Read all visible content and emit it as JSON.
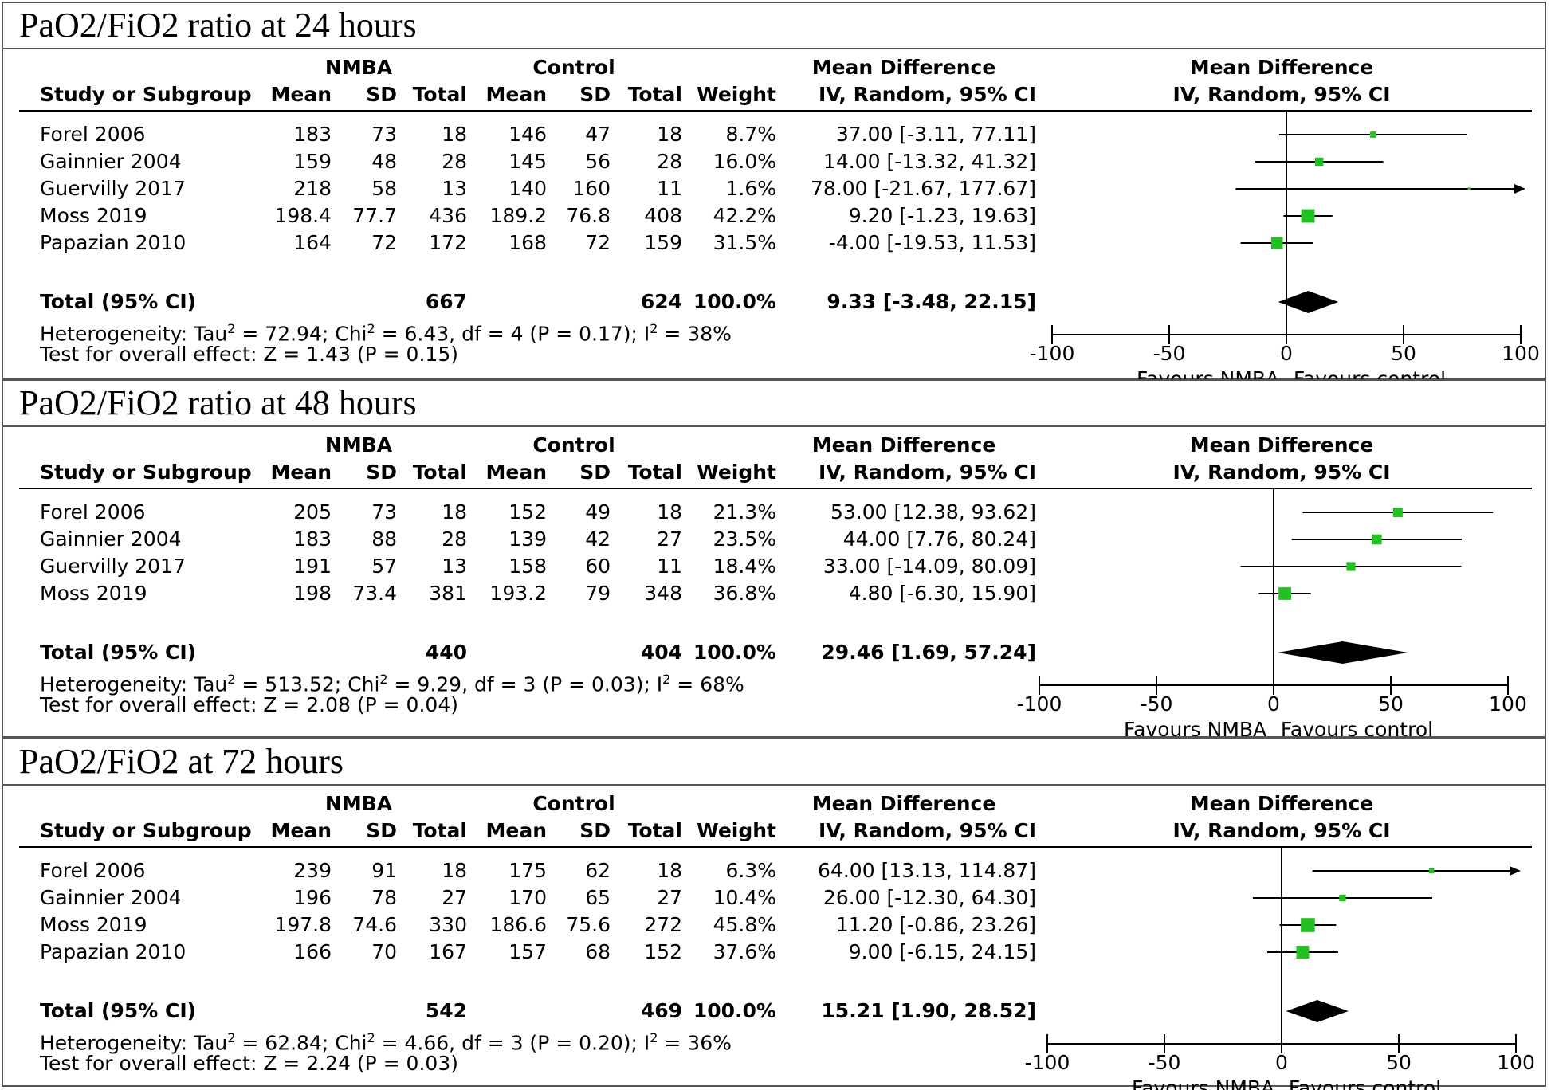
{
  "headers": {
    "group_a": "NMBA",
    "group_b": "Control",
    "study": "Study or Subgroup",
    "mean": "Mean",
    "sd": "SD",
    "total": "Total",
    "weight": "Weight",
    "md_title": "Mean Difference",
    "md_sub": "IV, Random, 95% CI"
  },
  "colors": {
    "marker": "#22c022",
    "diamond": "#000000",
    "line": "#000000",
    "border": "#555555"
  },
  "chart_data": [
    {
      "type": "forest",
      "title": "PaO2/FiO2 ratio at 24 hours",
      "xlim": [
        -100,
        100
      ],
      "xticks": [
        "-100",
        "-50",
        "0",
        "50",
        "100"
      ],
      "favours_left": "Favours NMBA",
      "favours_right": "Favours control",
      "rows": [
        {
          "study": "Forel 2006",
          "mean_a": "183",
          "sd_a": "73",
          "total_a": "18",
          "mean_b": "146",
          "sd_b": "47",
          "total_b": "18",
          "weight": "8.7%",
          "ci_text": "37.00 [-3.11, 77.11]",
          "md": 37.0,
          "lo": -3.11,
          "hi": 77.11,
          "w": 8.7
        },
        {
          "study": "Gainnier 2004",
          "mean_a": "159",
          "sd_a": "48",
          "total_a": "28",
          "mean_b": "145",
          "sd_b": "56",
          "total_b": "28",
          "weight": "16.0%",
          "ci_text": "14.00 [-13.32, 41.32]",
          "md": 14.0,
          "lo": -13.32,
          "hi": 41.32,
          "w": 16.0
        },
        {
          "study": "Guervilly 2017",
          "mean_a": "218",
          "sd_a": "58",
          "total_a": "13",
          "mean_b": "140",
          "sd_b": "160",
          "total_b": "11",
          "weight": "1.6%",
          "ci_text": "78.00 [-21.67, 177.67]",
          "md": 78.0,
          "lo": -21.67,
          "hi": 177.67,
          "w": 1.6
        },
        {
          "study": "Moss 2019",
          "mean_a": "198.4",
          "sd_a": "77.7",
          "total_a": "436",
          "mean_b": "189.2",
          "sd_b": "76.8",
          "total_b": "408",
          "weight": "42.2%",
          "ci_text": "9.20 [-1.23, 19.63]",
          "md": 9.2,
          "lo": -1.23,
          "hi": 19.63,
          "w": 42.2
        },
        {
          "study": "Papazian 2010",
          "mean_a": "164",
          "sd_a": "72",
          "total_a": "172",
          "mean_b": "168",
          "sd_b": "72",
          "total_b": "159",
          "weight": "31.5%",
          "ci_text": "-4.00 [-19.53, 11.53]",
          "md": -4.0,
          "lo": -19.53,
          "hi": 11.53,
          "w": 31.5
        }
      ],
      "total": {
        "label": "Total (95% CI)",
        "total_a": "667",
        "total_b": "624",
        "weight": "100.0%",
        "ci_text": "9.33 [-3.48, 22.15]",
        "md": 9.33,
        "lo": -3.48,
        "hi": 22.15
      },
      "heterogeneity": {
        "prefix": "Heterogeneity: Tau",
        "mid": " = 72.94; Chi",
        "rest": " = 6.43, df = 4 (P = 0.17); I",
        "tail": " = 38%"
      },
      "overall": "Test for overall effect: Z = 1.43 (P = 0.15)"
    },
    {
      "type": "forest",
      "title": "PaO2/FiO2 ratio at 48 hours",
      "xlim": [
        -100,
        100
      ],
      "xticks": [
        "-100",
        "-50",
        "0",
        "50",
        "100"
      ],
      "favours_left": "Favours NMBA",
      "favours_right": "Favours control",
      "rows": [
        {
          "study": "Forel 2006",
          "mean_a": "205",
          "sd_a": "73",
          "total_a": "18",
          "mean_b": "152",
          "sd_b": "49",
          "total_b": "18",
          "weight": "21.3%",
          "ci_text": "53.00 [12.38, 93.62]",
          "md": 53.0,
          "lo": 12.38,
          "hi": 93.62,
          "w": 21.3
        },
        {
          "study": "Gainnier 2004",
          "mean_a": "183",
          "sd_a": "88",
          "total_a": "28",
          "mean_b": "139",
          "sd_b": "42",
          "total_b": "27",
          "weight": "23.5%",
          "ci_text": "44.00 [7.76, 80.24]",
          "md": 44.0,
          "lo": 7.76,
          "hi": 80.24,
          "w": 23.5
        },
        {
          "study": "Guervilly 2017",
          "mean_a": "191",
          "sd_a": "57",
          "total_a": "13",
          "mean_b": "158",
          "sd_b": "60",
          "total_b": "11",
          "weight": "18.4%",
          "ci_text": "33.00 [-14.09, 80.09]",
          "md": 33.0,
          "lo": -14.09,
          "hi": 80.09,
          "w": 18.4
        },
        {
          "study": "Moss 2019",
          "mean_a": "198",
          "sd_a": "73.4",
          "total_a": "381",
          "mean_b": "193.2",
          "sd_b": "79",
          "total_b": "348",
          "weight": "36.8%",
          "ci_text": "4.80 [-6.30, 15.90]",
          "md": 4.8,
          "lo": -6.3,
          "hi": 15.9,
          "w": 36.8
        }
      ],
      "total": {
        "label": "Total (95% CI)",
        "total_a": "440",
        "total_b": "404",
        "weight": "100.0%",
        "ci_text": "29.46 [1.69, 57.24]",
        "md": 29.46,
        "lo": 1.69,
        "hi": 57.24
      },
      "heterogeneity": {
        "prefix": "Heterogeneity: Tau",
        "mid": " = 513.52; Chi",
        "rest": " = 9.29, df = 3 (P = 0.03); I",
        "tail": " = 68%"
      },
      "overall": "Test for overall effect: Z = 2.08 (P = 0.04)"
    },
    {
      "type": "forest",
      "title": "PaO2/FiO2 at 72 hours",
      "xlim": [
        -100,
        100
      ],
      "xticks": [
        "-100",
        "-50",
        "0",
        "50",
        "100"
      ],
      "favours_left": "Favours NMBA",
      "favours_right": "Favours control",
      "rows": [
        {
          "study": "Forel 2006",
          "mean_a": "239",
          "sd_a": "91",
          "total_a": "18",
          "mean_b": "175",
          "sd_b": "62",
          "total_b": "18",
          "weight": "6.3%",
          "ci_text": "64.00 [13.13, 114.87]",
          "md": 64.0,
          "lo": 13.13,
          "hi": 114.87,
          "w": 6.3
        },
        {
          "study": "Gainnier 2004",
          "mean_a": "196",
          "sd_a": "78",
          "total_a": "27",
          "mean_b": "170",
          "sd_b": "65",
          "total_b": "27",
          "weight": "10.4%",
          "ci_text": "26.00 [-12.30, 64.30]",
          "md": 26.0,
          "lo": -12.3,
          "hi": 64.3,
          "w": 10.4
        },
        {
          "study": "Moss 2019",
          "mean_a": "197.8",
          "sd_a": "74.6",
          "total_a": "330",
          "mean_b": "186.6",
          "sd_b": "75.6",
          "total_b": "272",
          "weight": "45.8%",
          "ci_text": "11.20 [-0.86, 23.26]",
          "md": 11.2,
          "lo": -0.86,
          "hi": 23.26,
          "w": 45.8
        },
        {
          "study": "Papazian 2010",
          "mean_a": "166",
          "sd_a": "70",
          "total_a": "167",
          "mean_b": "157",
          "sd_b": "68",
          "total_b": "152",
          "weight": "37.6%",
          "ci_text": "9.00 [-6.15, 24.15]",
          "md": 9.0,
          "lo": -6.15,
          "hi": 24.15,
          "w": 37.6
        }
      ],
      "total": {
        "label": "Total (95% CI)",
        "total_a": "542",
        "total_b": "469",
        "weight": "100.0%",
        "ci_text": "15.21 [1.90, 28.52]",
        "md": 15.21,
        "lo": 1.9,
        "hi": 28.52
      },
      "heterogeneity": {
        "prefix": "Heterogeneity: Tau",
        "mid": " = 62.84; Chi",
        "rest": " = 4.66, df = 3 (P = 0.20); I",
        "tail": " = 36%"
      },
      "overall": "Test for overall effect: Z = 2.24 (P = 0.03)"
    }
  ]
}
